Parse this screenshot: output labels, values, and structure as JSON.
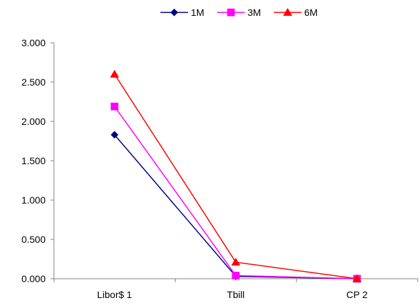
{
  "chart_data": {
    "type": "line",
    "title": "",
    "xlabel": "",
    "ylabel": "",
    "categories": [
      "Libor$ 1",
      "Tbill",
      "CP 2"
    ],
    "ylim": [
      0,
      3
    ],
    "yticks": [
      0,
      0.5,
      1,
      1.5,
      2,
      2.5,
      3
    ],
    "ytick_labels": [
      "0.000",
      "0.500",
      "1.000",
      "1.500",
      "2.000",
      "2.500",
      "3.000"
    ],
    "grid": false,
    "legend_position": "top-center",
    "series": [
      {
        "name": "1M",
        "values": [
          1.83,
          0.03,
          0.0
        ],
        "color": "#000080",
        "marker": "diamond"
      },
      {
        "name": "3M",
        "values": [
          2.19,
          0.04,
          0.0
        ],
        "color": "#ff00ff",
        "marker": "square"
      },
      {
        "name": "6M",
        "values": [
          2.6,
          0.21,
          0.0
        ],
        "color": "#ff0000",
        "marker": "triangle"
      }
    ]
  }
}
